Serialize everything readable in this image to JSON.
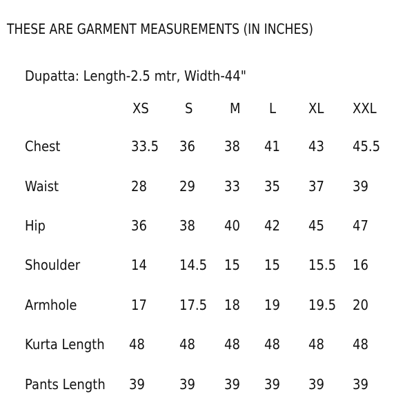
{
  "title": "THESE ARE GARMENT MEASUREMENTS (IN INCHES)",
  "dupatta": "Dupatta: Length-2.5 mtr, Width-44\"",
  "table": {
    "headers": [
      "XS",
      "S",
      "M",
      "L",
      "XL",
      "XXL"
    ],
    "rows": [
      {
        "label": "Chest",
        "values": [
          "33.5",
          "36",
          "38",
          "41",
          "43",
          "45.5"
        ]
      },
      {
        "label": "Waist",
        "values": [
          "28",
          "29",
          "33",
          "35",
          "37",
          "39"
        ]
      },
      {
        "label": "Hip",
        "values": [
          "36",
          "38",
          "40",
          "42",
          "45",
          "47"
        ]
      },
      {
        "label": "Shoulder",
        "values": [
          "14",
          "14.5",
          "15",
          "15",
          "15.5",
          "16"
        ]
      },
      {
        "label": "Armhole",
        "values": [
          "17",
          "17.5",
          "18",
          "19",
          "19.5",
          "20"
        ]
      },
      {
        "label": "Kurta Length",
        "values": [
          "48",
          "48",
          "48",
          "48",
          "48",
          "48"
        ]
      },
      {
        "label": "Pants Length",
        "values": [
          "39",
          "39",
          "39",
          "39",
          "39",
          "39"
        ]
      }
    ]
  }
}
